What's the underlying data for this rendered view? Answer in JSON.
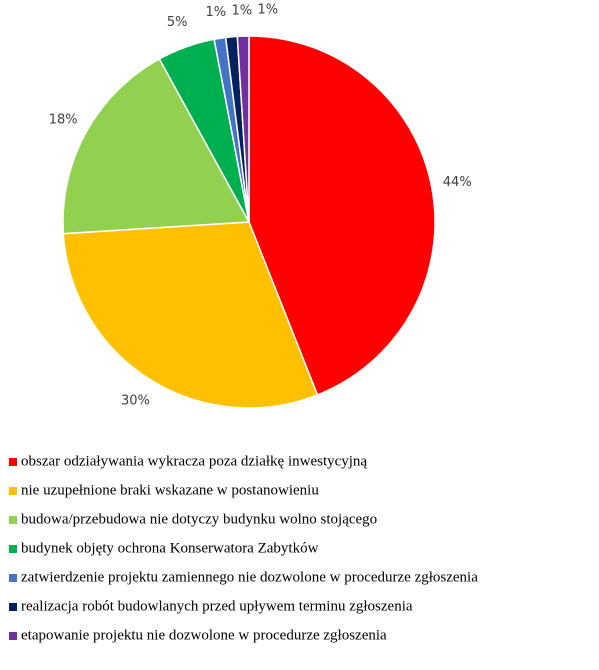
{
  "chart_data": {
    "type": "pie",
    "categories": [
      "obszar odziaływania wykracza poza działkę inwestycyjną",
      "nie uzupełnione braki wskazane w postanowieniu",
      "budowa/przebudowa nie dotyczy budynku wolno stojącego",
      "budynek objęty ochrona Konserwatora Zabytków",
      "zatwierdzenie  projektu zamiennego nie dozwolone w procedurze zgłoszenia",
      "realizacja robót budowlanych przed upływem terminu zgłoszenia",
      "etapowanie projektu nie dozwolone w procedurze zgłoszenia"
    ],
    "values": [
      44,
      30,
      18,
      5,
      1,
      1,
      1
    ],
    "value_labels": [
      "44%",
      "30%",
      "18%",
      "5%",
      "1%",
      "1%",
      "1%"
    ],
    "colors": [
      "#ff0000",
      "#ffc000",
      "#92d050",
      "#00b050",
      "#4472c4",
      "#002060",
      "#7030a0"
    ],
    "legend": "bottom"
  }
}
